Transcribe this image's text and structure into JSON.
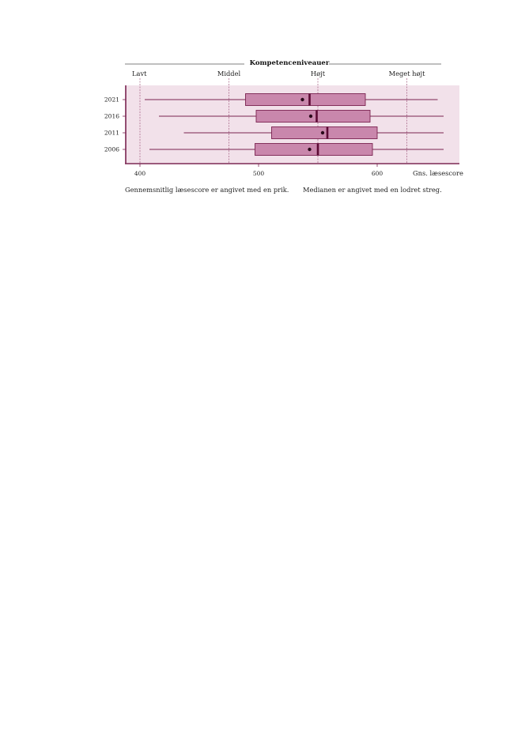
{
  "chart_data": {
    "type": "boxplot",
    "title": "Kompetenceniveauer",
    "xlabel": "Gns. læsescore",
    "xlim": [
      388,
      670
    ],
    "xticks": [
      400,
      500,
      600
    ],
    "xtick_labels": [
      "400",
      "500",
      "600"
    ],
    "competence_levels": [
      {
        "label": "Lavt",
        "value": 400
      },
      {
        "label": "Middel",
        "value": 475
      },
      {
        "label": "Højt",
        "value": 550
      },
      {
        "label": "Meget højt",
        "value": 625
      }
    ],
    "categories": [
      "2021",
      "2016",
      "2011",
      "2006"
    ],
    "boxes": [
      {
        "year": "2021",
        "min": 404,
        "q1": 489,
        "median": 543,
        "q3": 590,
        "max": 651,
        "mean": 537
      },
      {
        "year": "2016",
        "min": 416,
        "q1": 498,
        "median": 549,
        "q3": 594,
        "max": 656,
        "mean": 544
      },
      {
        "year": "2011",
        "min": 437,
        "q1": 511,
        "median": 558,
        "q3": 600,
        "max": 656,
        "mean": 554
      },
      {
        "year": "2006",
        "min": 408,
        "q1": 497,
        "median": 550,
        "q3": 596,
        "max": 656,
        "mean": 543
      }
    ],
    "colors": {
      "band": "#f2e1ea",
      "box_fill": "#c987ac",
      "box_stroke": "#7a2350",
      "whisker": "#7a2350",
      "median": "#5c0a34",
      "mean_dot": "#2a0a1a",
      "axis": "#7a2350",
      "guide_line": "#a35d80"
    },
    "grid": false,
    "legend": "none"
  },
  "captions": {
    "left": "Gennemsnitlig læsescore er angivet med en prik.",
    "right": "Medianen er angivet med en lodret streg."
  }
}
